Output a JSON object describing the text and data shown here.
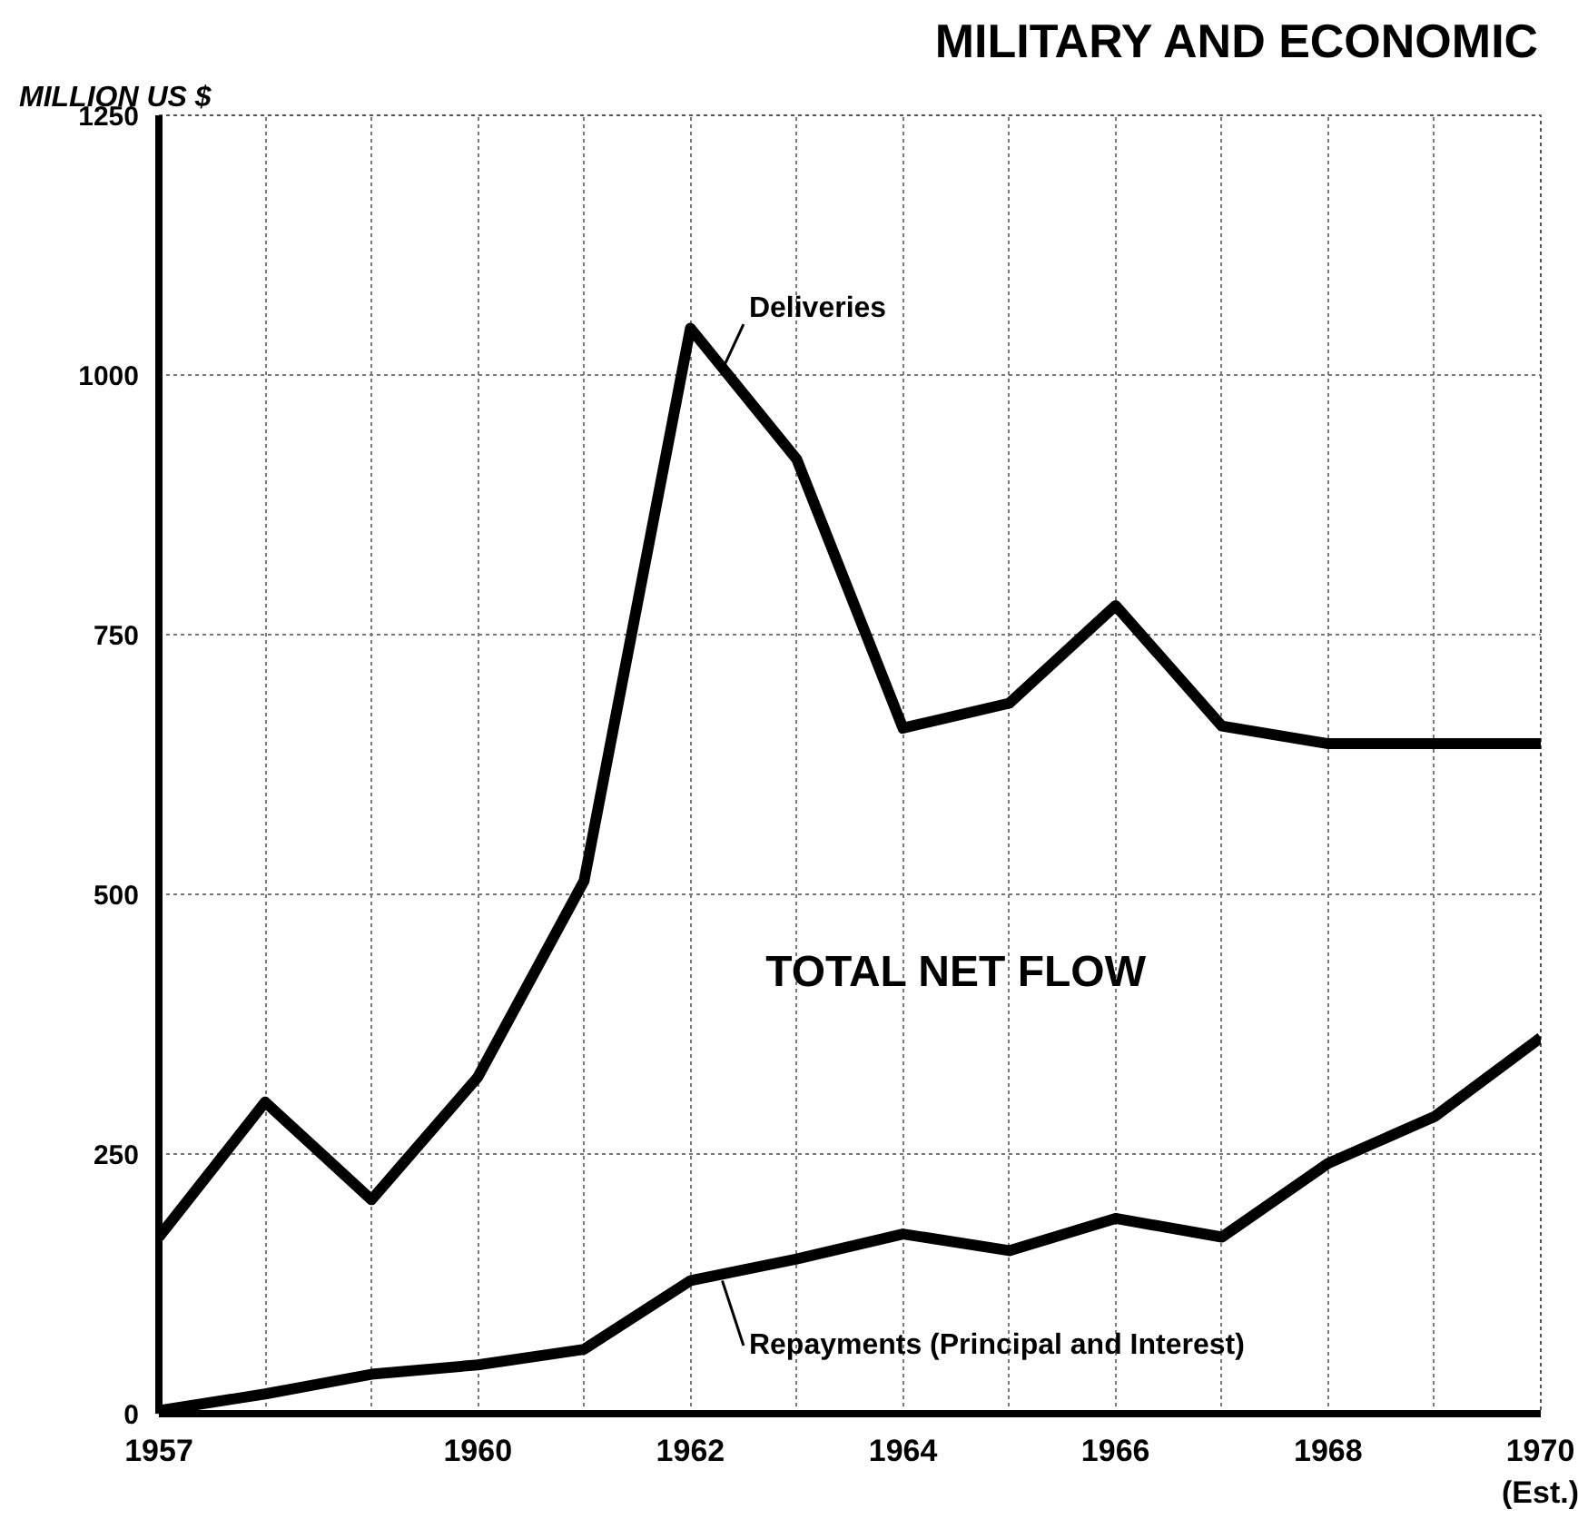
{
  "chart_data": {
    "type": "line",
    "title": "MILITARY AND ECONOMIC",
    "ylabel": "MILLION US $",
    "x": [
      1957,
      1958,
      1959,
      1960,
      1961,
      1962,
      1963,
      1964,
      1965,
      1966,
      1967,
      1968,
      1969,
      1970
    ],
    "series": [
      {
        "color": "#000000",
        "values": [
          170,
          300,
          206,
          324,
          513,
          1045,
          919,
          660,
          684,
          778,
          662,
          645,
          645,
          645
        ]
      },
      {
        "color": "#000000",
        "values": [
          3,
          19,
          38,
          47,
          62,
          128,
          149,
          173,
          157,
          188,
          170,
          241,
          286,
          362
        ]
      }
    ],
    "annotations": [
      {
        "text": "Deliveries",
        "x": 1962.3,
        "y": 1005
      },
      {
        "text": "Repayments (Principal and Interest)",
        "x": 1962.3,
        "y": 128
      },
      "TOTAL NET FLOW"
    ],
    "xlim": [
      1957,
      1970
    ],
    "ylim": [
      0,
      1250
    ],
    "xticks": [
      1957,
      {
        "value": 1958,
        "label": null
      },
      {
        "value": 1959,
        "label": null
      },
      1960,
      {
        "value": 1961,
        "label": null
      },
      1962,
      {
        "value": 1963,
        "label": null
      },
      1964,
      {
        "value": 1965,
        "label": null
      },
      1966,
      {
        "value": 1967,
        "label": null
      },
      1968,
      {
        "value": 1969,
        "label": null
      },
      {
        "value": 1970,
        "label": "1970\n(Est.)"
      }
    ],
    "yticks": [
      0,
      250,
      500,
      750,
      1000,
      1250
    ],
    "grid": true,
    "marker": "none",
    "line_style": "solid"
  }
}
